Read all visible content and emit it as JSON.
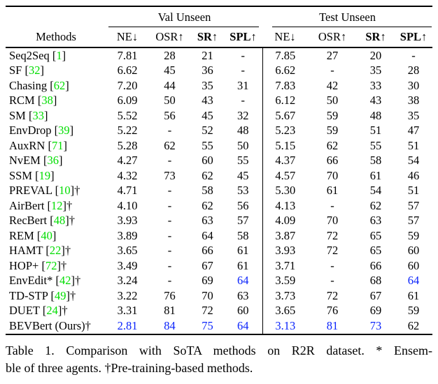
{
  "colors": {
    "citation_green": "#00dd00",
    "highlight_blue": "#0b24fb"
  },
  "table": {
    "groups": [
      {
        "label": "Val Unseen"
      },
      {
        "label": "Test Unseen"
      }
    ],
    "methods_header": "Methods",
    "columns": [
      "NE↓",
      "OSR↑",
      "SR↑",
      "SPL↑",
      "NE↓",
      "OSR↑",
      "SR↑",
      "SPL↑"
    ],
    "rows": [
      {
        "name": "Seq2Seq",
        "cite": "1",
        "suffix": "",
        "cells": [
          "7.81",
          "28",
          "21",
          "-",
          "7.85",
          "27",
          "20",
          "-"
        ],
        "blue": []
      },
      {
        "name": "SF",
        "cite": "32",
        "suffix": "",
        "cells": [
          "6.62",
          "45",
          "36",
          "-",
          "6.62",
          "-",
          "35",
          "28"
        ],
        "blue": []
      },
      {
        "name": "Chasing",
        "cite": "62",
        "suffix": "",
        "cells": [
          "7.20",
          "44",
          "35",
          "31",
          "7.83",
          "42",
          "33",
          "30"
        ],
        "blue": []
      },
      {
        "name": "RCM",
        "cite": "38",
        "suffix": "",
        "cells": [
          "6.09",
          "50",
          "43",
          "-",
          "6.12",
          "50",
          "43",
          "38"
        ],
        "blue": []
      },
      {
        "name": "SM",
        "cite": "33",
        "suffix": "",
        "cells": [
          "5.52",
          "56",
          "45",
          "32",
          "5.67",
          "59",
          "48",
          "35"
        ],
        "blue": []
      },
      {
        "name": "EnvDrop",
        "cite": "39",
        "suffix": "",
        "cells": [
          "5.22",
          "-",
          "52",
          "48",
          "5.23",
          "59",
          "51",
          "47"
        ],
        "blue": []
      },
      {
        "name": "AuxRN",
        "cite": "71",
        "suffix": "",
        "cells": [
          "5.28",
          "62",
          "55",
          "50",
          "5.15",
          "62",
          "55",
          "51"
        ],
        "blue": []
      },
      {
        "name": "NvEM",
        "cite": "36",
        "suffix": "",
        "cells": [
          "4.27",
          "-",
          "60",
          "55",
          "4.37",
          "66",
          "58",
          "54"
        ],
        "blue": []
      },
      {
        "name": "SSM",
        "cite": "19",
        "suffix": "",
        "cells": [
          "4.32",
          "73",
          "62",
          "45",
          "4.57",
          "70",
          "61",
          "46"
        ],
        "blue": []
      },
      {
        "name": "PREVAL",
        "cite": "10",
        "suffix": "†",
        "cells": [
          "4.71",
          "-",
          "58",
          "53",
          "5.30",
          "61",
          "54",
          "51"
        ],
        "blue": []
      },
      {
        "name": "AirBert",
        "cite": "12",
        "suffix": "†",
        "cells": [
          "4.10",
          "-",
          "62",
          "56",
          "4.13",
          "-",
          "62",
          "57"
        ],
        "blue": []
      },
      {
        "name": "RecBert",
        "cite": "48",
        "suffix": "†",
        "cells": [
          "3.93",
          "-",
          "63",
          "57",
          "4.09",
          "70",
          "63",
          "57"
        ],
        "blue": []
      },
      {
        "name": "REM",
        "cite": "40",
        "suffix": "",
        "cells": [
          "3.89",
          "-",
          "64",
          "58",
          "3.87",
          "72",
          "65",
          "59"
        ],
        "blue": []
      },
      {
        "name": "HAMT",
        "cite": "22",
        "suffix": "†",
        "cells": [
          "3.65",
          "-",
          "66",
          "61",
          "3.93",
          "72",
          "65",
          "60"
        ],
        "blue": []
      },
      {
        "name": "HOP+",
        "cite": "72",
        "suffix": "†",
        "cells": [
          "3.49",
          "-",
          "67",
          "61",
          "3.71",
          "-",
          "66",
          "60"
        ],
        "blue": []
      },
      {
        "name": "EnvEdit*",
        "cite": "42",
        "suffix": "†",
        "cells": [
          "3.24",
          "-",
          "69",
          "64",
          "3.59",
          "-",
          "68",
          "64"
        ],
        "blue": [
          3,
          7
        ]
      },
      {
        "name": "TD-STP",
        "cite": "49",
        "suffix": "†",
        "cells": [
          "3.22",
          "76",
          "70",
          "63",
          "3.73",
          "72",
          "67",
          "61"
        ],
        "blue": []
      },
      {
        "name": "DUET",
        "cite": "24",
        "suffix": "†",
        "cells": [
          "3.31",
          "81",
          "72",
          "60",
          "3.65",
          "76",
          "69",
          "59"
        ],
        "blue": []
      },
      {
        "name": "BEVBert (Ours)",
        "cite": null,
        "suffix": "†",
        "cells": [
          "2.81",
          "84",
          "75",
          "64",
          "3.13",
          "81",
          "73",
          "62"
        ],
        "blue": [
          0,
          1,
          2,
          3,
          4,
          5,
          6
        ]
      }
    ]
  },
  "caption": {
    "line1": "Table 1. Comparison with SoTA methods on R2R dataset. * Ensem-",
    "line2": "ble of three agents. †Pre-training-based methods."
  }
}
